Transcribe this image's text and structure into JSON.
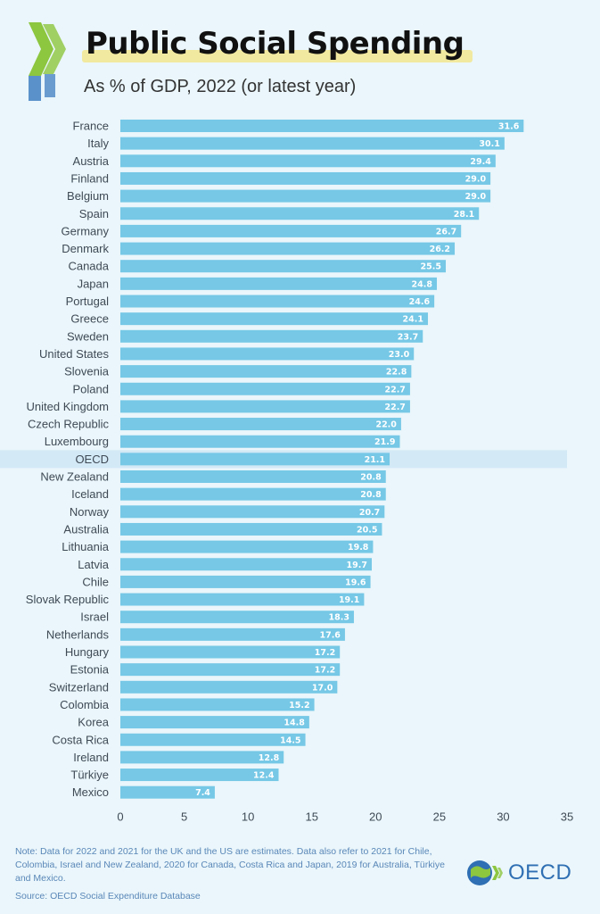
{
  "header": {
    "title": "Public Social Spending",
    "subtitle": "As % of GDP, 2022 (or latest year)"
  },
  "footer": {
    "note": "Note: Data for 2022 and 2021 for the UK and the US are estimates. Data also refer to 2021 for Chile, Colombia, Israel and New Zealand, 2020 for Canada, Costa Rica and Japan, 2019 for Australia, Türkiye and Mexico.",
    "source": "Source:  OECD Social Expenditure Database",
    "logo_text": "OECD"
  },
  "colors": {
    "bar": "#76c8e6",
    "highlight_band": "#d3e9f6",
    "accent_green": "#8dc63f",
    "accent_blue": "#4a86c5"
  },
  "chart_data": {
    "type": "bar",
    "orientation": "horizontal",
    "title": "Public Social Spending",
    "subtitle": "As % of GDP, 2022 (or latest year)",
    "highlight_category": "OECD",
    "xlim": [
      0,
      35
    ],
    "xticks": [
      0,
      5,
      10,
      15,
      20,
      25,
      30,
      35
    ],
    "categories": [
      "France",
      "Italy",
      "Austria",
      "Finland",
      "Belgium",
      "Spain",
      "Germany",
      "Denmark",
      "Canada",
      "Japan",
      "Portugal",
      "Greece",
      "Sweden",
      "United States",
      "Slovenia",
      "Poland",
      "United Kingdom",
      "Czech Republic",
      "Luxembourg",
      "OECD",
      "New Zealand",
      "Iceland",
      "Norway",
      "Australia",
      "Lithuania",
      "Latvia",
      "Chile",
      "Slovak Republic",
      "Israel",
      "Netherlands",
      "Hungary",
      "Estonia",
      "Switzerland",
      "Colombia",
      "Korea",
      "Costa Rica",
      "Ireland",
      "Türkiye",
      "Mexico"
    ],
    "values": [
      31.6,
      30.1,
      29.4,
      29.0,
      29.0,
      28.1,
      26.7,
      26.2,
      25.5,
      24.8,
      24.6,
      24.1,
      23.7,
      23.0,
      22.8,
      22.7,
      22.7,
      22.0,
      21.9,
      21.1,
      20.8,
      20.8,
      20.7,
      20.5,
      19.8,
      19.7,
      19.6,
      19.1,
      18.3,
      17.6,
      17.2,
      17.2,
      17.0,
      15.2,
      14.8,
      14.5,
      12.8,
      12.4,
      7.4
    ],
    "value_labels": [
      "31.6",
      "30.1",
      "29.4",
      "29.0",
      "29.0",
      "28.1",
      "26.7",
      "26.2",
      "25.5",
      "24.8",
      "24.6",
      "24.1",
      "23.7",
      "23.0",
      "22.8",
      "22.7",
      "22.7",
      "22.0",
      "21.9",
      "21.1",
      "20.8",
      "20.8",
      "20.7",
      "20.5",
      "19.8",
      "19.7",
      "19.6",
      "19.1",
      "18.3",
      "17.6",
      "17.2",
      "17.2",
      "17.0",
      "15.2",
      "14.8",
      "14.5",
      "12.8",
      "12.4",
      "7.4"
    ],
    "grid": false
  }
}
